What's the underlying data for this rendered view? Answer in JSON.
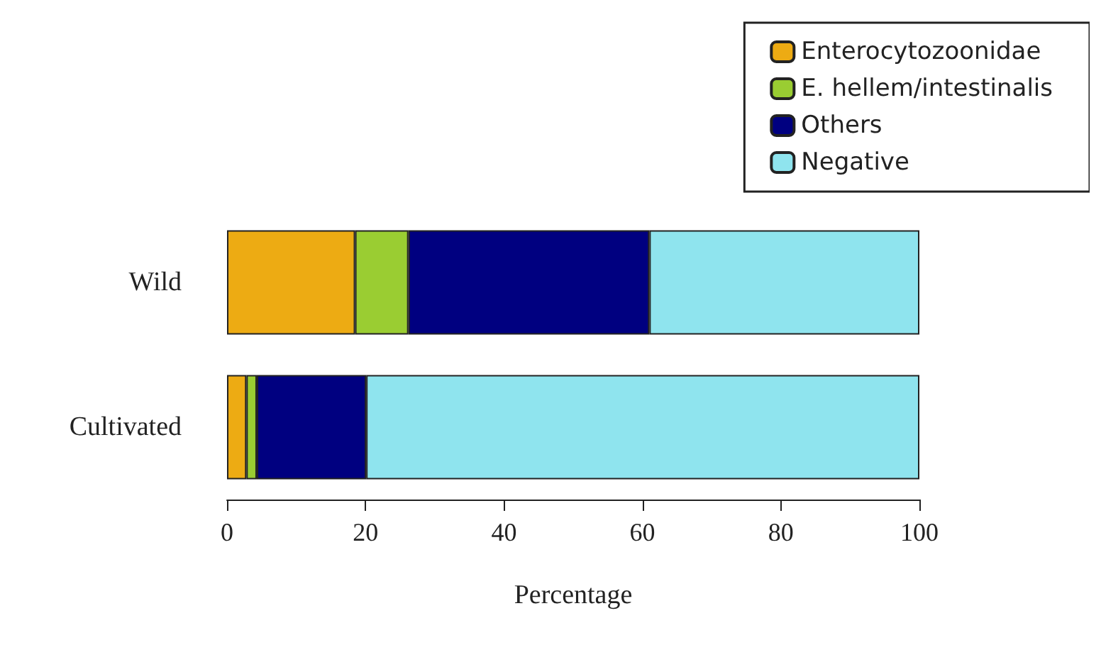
{
  "chart_data": {
    "type": "bar",
    "orientation": "horizontal",
    "stacked": true,
    "xlabel": "Percentage",
    "categories": [
      "Wild",
      "Cultivated"
    ],
    "series": [
      {
        "name": "Enterocytozoonidae",
        "color": "#edab13",
        "values": [
          18.5,
          2.8
        ]
      },
      {
        "name": "E. hellem/intestinalis",
        "color": "#9acd32",
        "values": [
          7.7,
          1.5
        ]
      },
      {
        "name": "Others",
        "color": "#000080",
        "values": [
          34.8,
          15.8
        ]
      },
      {
        "name": "Negative",
        "color": "#8fe4ee",
        "values": [
          39,
          79.9
        ]
      }
    ],
    "xlim": [
      0,
      100
    ],
    "xticks": [
      0,
      20,
      40,
      60,
      80,
      100
    ],
    "grid": false,
    "legend": "top right"
  }
}
